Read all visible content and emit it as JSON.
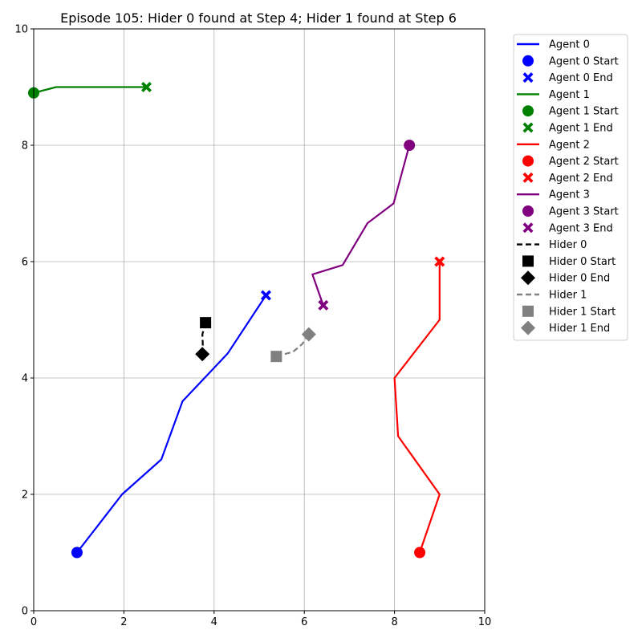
{
  "chart_data": {
    "type": "line",
    "title": "Episode 105: Hider 0 found at Step 4; Hider 1 found at Step 6",
    "xlabel": "",
    "ylabel": "",
    "xlim": [
      0,
      10
    ],
    "ylim": [
      0,
      10
    ],
    "xticks": [
      0,
      2,
      4,
      6,
      8,
      10
    ],
    "yticks": [
      0,
      2,
      4,
      6,
      8,
      10
    ],
    "grid": true,
    "legend_position": "outside-right",
    "series": [
      {
        "key": "agent-0",
        "name": "Agent 0",
        "color": "#0000ff",
        "dashed": false,
        "start_marker": "circle",
        "end_marker": "x",
        "start_label": "Agent 0 Start",
        "end_label": "Agent 0 End",
        "points": [
          [
            0.96,
            1.0
          ],
          [
            1.96,
            2.0
          ],
          [
            2.83,
            2.6
          ],
          [
            3.3,
            3.6
          ],
          [
            4.3,
            4.42
          ],
          [
            5.15,
            5.42
          ]
        ]
      },
      {
        "key": "agent-1",
        "name": "Agent 1",
        "color": "#008000",
        "dashed": false,
        "start_marker": "circle",
        "end_marker": "x",
        "start_label": "Agent 1 Start",
        "end_label": "Agent 1 End",
        "points": [
          [
            0.0,
            8.9
          ],
          [
            0.5,
            9.0
          ],
          [
            1.35,
            9.0
          ],
          [
            0.6,
            9.0
          ],
          [
            2.5,
            9.0
          ]
        ]
      },
      {
        "key": "agent-2",
        "name": "Agent 2",
        "color": "#ff0000",
        "dashed": false,
        "start_marker": "circle",
        "end_marker": "x",
        "start_label": "Agent 2 Start",
        "end_label": "Agent 2 End",
        "points": [
          [
            8.56,
            1.0
          ],
          [
            9.0,
            2.0
          ],
          [
            8.08,
            3.0
          ],
          [
            8.0,
            4.0
          ],
          [
            9.0,
            5.0
          ],
          [
            9.0,
            6.0
          ]
        ]
      },
      {
        "key": "agent-3",
        "name": "Agent 3",
        "color": "#800080",
        "dashed": false,
        "start_marker": "circle",
        "end_marker": "x",
        "start_label": "Agent 3 Start",
        "end_label": "Agent 3 End",
        "points": [
          [
            8.33,
            8.0
          ],
          [
            7.98,
            7.0
          ],
          [
            7.4,
            6.66
          ],
          [
            6.85,
            5.94
          ],
          [
            6.18,
            5.78
          ],
          [
            6.42,
            5.25
          ]
        ]
      },
      {
        "key": "hider-0",
        "name": "Hider 0",
        "color": "#000000",
        "dashed": true,
        "start_marker": "square",
        "end_marker": "diamond",
        "start_label": "Hider 0 Start",
        "end_label": "Hider 0 End",
        "points": [
          [
            3.81,
            4.95
          ],
          [
            3.74,
            4.75
          ],
          [
            3.75,
            4.55
          ],
          [
            3.74,
            4.41
          ]
        ]
      },
      {
        "key": "hider-1",
        "name": "Hider 1",
        "color": "#808080",
        "dashed": true,
        "start_marker": "square",
        "end_marker": "diamond",
        "start_label": "Hider 1 Start",
        "end_label": "Hider 1 End",
        "points": [
          [
            5.38,
            4.37
          ],
          [
            5.75,
            4.45
          ],
          [
            5.95,
            4.58
          ],
          [
            6.1,
            4.75
          ]
        ]
      }
    ]
  }
}
